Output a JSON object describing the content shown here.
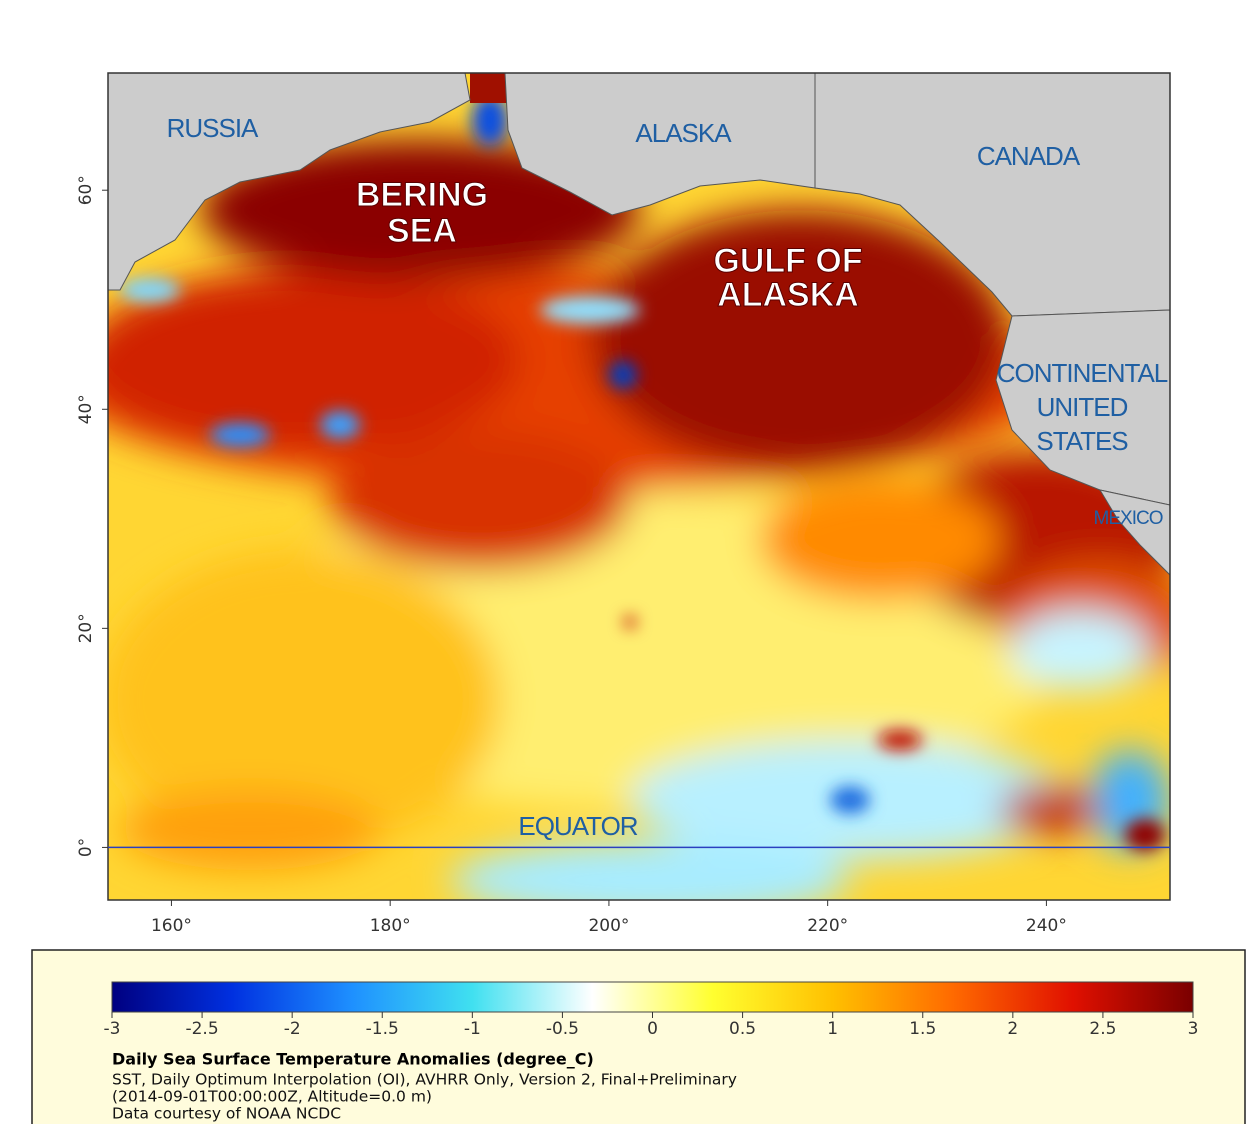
{
  "map": {
    "xlim": [
      154.2,
      251.3
    ],
    "ylim": [
      -4.8,
      70.7
    ],
    "xticks": [
      {
        "value": 160,
        "label": "160°"
      },
      {
        "value": 180,
        "label": "180°"
      },
      {
        "value": 200,
        "label": "200°"
      },
      {
        "value": 220,
        "label": "220°"
      },
      {
        "value": 240,
        "label": "240°"
      }
    ],
    "yticks": [
      {
        "value": 0,
        "label": "0°"
      },
      {
        "value": 20,
        "label": "20°"
      },
      {
        "value": 40,
        "label": "40°"
      },
      {
        "value": 60,
        "label": "60°"
      }
    ],
    "places": [
      {
        "lines": [
          "RUSSIA"
        ],
        "style": "plain"
      },
      {
        "lines": [
          "ALASKA"
        ],
        "style": "plain"
      },
      {
        "lines": [
          "CANADA"
        ],
        "style": "plain"
      },
      {
        "lines": [
          "BERING",
          "SEA"
        ],
        "style": "bold"
      },
      {
        "lines": [
          "GULF OF",
          "ALASKA"
        ],
        "style": "bold"
      },
      {
        "lines": [
          "CONTINENTAL",
          "UNITED",
          "STATES"
        ],
        "style": "plain"
      },
      {
        "lines": [
          "MEXICO"
        ],
        "style": "plain"
      },
      {
        "lines": [
          "EQUATOR"
        ],
        "style": "plain"
      }
    ]
  },
  "colorbar": {
    "range": [
      -3,
      3
    ],
    "ticks": [
      -3,
      -2.5,
      -2,
      -1.5,
      -1,
      -0.5,
      0,
      0.5,
      1,
      1.5,
      2,
      2.5,
      3
    ],
    "colors": [
      "#000080",
      "#0030e0",
      "#1e90ff",
      "#40e0f0",
      "#ffffff",
      "#ffff30",
      "#ffc000",
      "#ff6a00",
      "#e01000",
      "#7a0000"
    ]
  },
  "caption": {
    "title": "Daily Sea Surface Temperature Anomalies (degree_C)",
    "lines": [
      "SST, Daily Optimum Interpolation (OI), AVHRR Only, Version 2, Final+Preliminary",
      "(2014-09-01T00:00:00Z, Altitude=0.0 m)",
      "Data courtesy of NOAA NCDC"
    ]
  }
}
